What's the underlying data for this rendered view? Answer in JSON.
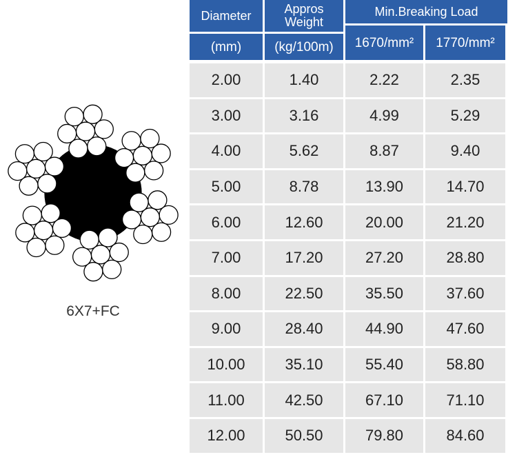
{
  "figure": {
    "label": "6X7+FC"
  },
  "table": {
    "header": {
      "top": [
        "Diameter",
        "Appros Weight",
        "Min.Breaking Load"
      ],
      "units": [
        "(mm)",
        "(kg/100m)",
        "1670/mm²",
        "1770/mm²"
      ]
    },
    "rows": [
      [
        "2.00",
        "1.40",
        "2.22",
        "2.35"
      ],
      [
        "3.00",
        "3.16",
        "4.99",
        "5.29"
      ],
      [
        "4.00",
        "5.62",
        "8.87",
        "9.40"
      ],
      [
        "5.00",
        "8.78",
        "13.90",
        "14.70"
      ],
      [
        "6.00",
        "12.60",
        "20.00",
        "21.20"
      ],
      [
        "7.00",
        "17.20",
        "27.20",
        "28.80"
      ],
      [
        "8.00",
        "22.50",
        "35.50",
        "37.60"
      ],
      [
        "9.00",
        "28.40",
        "44.90",
        "47.60"
      ],
      [
        "10.00",
        "35.10",
        "55.40",
        "58.80"
      ],
      [
        "11.00",
        "42.50",
        "67.10",
        "71.10"
      ],
      [
        "12.00",
        "50.50",
        "79.80",
        "84.60"
      ]
    ]
  }
}
